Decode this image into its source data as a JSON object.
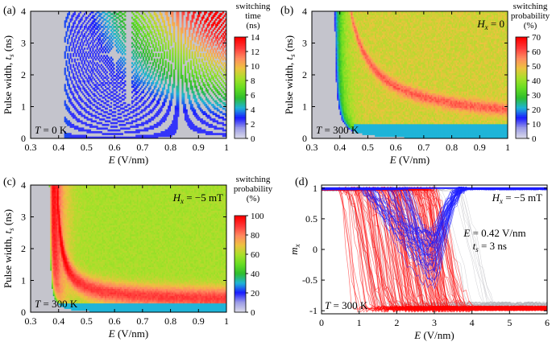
{
  "colors": {
    "background": "#ffffff",
    "no_switch": "#c4c4cc",
    "line_red": "#ff0000",
    "line_blue": "#1a1aff"
  },
  "colormap": [
    "#d9d9e8",
    "#9a9ae6",
    "#1a1aff",
    "#1fb4d8",
    "#2ebd2e",
    "#66dd22",
    "#a8e02a",
    "#eec240",
    "#ff8a60",
    "#ff3a3a",
    "#ff0000"
  ],
  "chart_data": [
    {
      "id": "a",
      "type": "heatmap",
      "panel_label": "(a)",
      "title": "",
      "xlabel": "E (V/nm)",
      "ylabel": "Pulse width, ts (ns)",
      "xlim": [
        0.3,
        1.0
      ],
      "ylim": [
        0,
        4
      ],
      "xticks": [
        "0.3",
        "0.4",
        "0.5",
        "0.6",
        "0.7",
        "0.8",
        "0.9",
        "1"
      ],
      "yticks": [
        "0",
        "1",
        "2",
        "3",
        "4"
      ],
      "annotations": [
        "T = 0 K"
      ],
      "field_label": "",
      "colorbar": {
        "label_lines": [
          "switching",
          "time",
          "(ns)"
        ],
        "range": [
          0,
          14
        ],
        "ticks": [
          "0",
          "2",
          "4",
          "6",
          "8",
          "10",
          "12",
          "14"
        ]
      },
      "values": {
        "threshold_field": 0.42,
        "gap_field": 0.65,
        "stripe_count": 18
      }
    },
    {
      "id": "b",
      "type": "heatmap",
      "panel_label": "(b)",
      "title": "",
      "xlabel": "E (V/nm)",
      "ylabel": "Pulse width, ts (ns)",
      "xlim": [
        0.3,
        1.0
      ],
      "ylim": [
        0,
        4
      ],
      "xticks": [
        "0.3",
        "0.4",
        "0.5",
        "0.6",
        "0.7",
        "0.8",
        "0.9",
        "1"
      ],
      "yticks": [
        "0",
        "1",
        "2",
        "3",
        "4"
      ],
      "annotations": [
        "T = 300 K"
      ],
      "field_label": "Hx = 0",
      "colorbar": {
        "label_lines": [
          "switching",
          "probability",
          "(%)"
        ],
        "range": [
          0,
          70
        ],
        "ticks": [
          "0",
          "10",
          "20",
          "30",
          "40",
          "50",
          "60",
          "70"
        ]
      },
      "values": {
        "threshold_field": 0.41,
        "plateau_probability": 48,
        "ridge_probability": 60
      }
    },
    {
      "id": "c",
      "type": "heatmap",
      "panel_label": "(c)",
      "title": "",
      "xlabel": "E (V/nm)",
      "ylabel": "Pulse width, ts (ns)",
      "xlim": [
        0.3,
        1.0
      ],
      "ylim": [
        0,
        4
      ],
      "xticks": [
        "0.3",
        "0.4",
        "0.5",
        "0.6",
        "0.7",
        "0.8",
        "0.9",
        "1"
      ],
      "yticks": [
        "0",
        "1",
        "2",
        "3",
        "4"
      ],
      "annotations": [
        "T = 300 K"
      ],
      "field_label": "Hx = −5 mT",
      "colorbar": {
        "label_lines": [
          "switching",
          "probability",
          "(%)"
        ],
        "range": [
          0,
          100
        ],
        "ticks": [
          "0",
          "20",
          "40",
          "60",
          "80",
          "100"
        ]
      },
      "values": {
        "threshold_field": 0.39,
        "plateau_probability": 62,
        "peak_probability": 95
      }
    },
    {
      "id": "d",
      "type": "line",
      "panel_label": "(d)",
      "title": "",
      "xlabel": "E (V/nm)",
      "ylabel": "mx",
      "xlim": [
        0,
        6
      ],
      "ylim": [
        -1.05,
        1.05
      ],
      "xticks": [
        "0",
        "1",
        "2",
        "3",
        "4",
        "5",
        "6"
      ],
      "yticks": [
        "-1",
        "-0.5",
        "0",
        "0.5",
        "1"
      ],
      "annotations": [
        "Hx = −5 mT",
        "E = 0.42 V/nm",
        "ts = 3 ns",
        "T = 300 K"
      ],
      "series": [
        {
          "name": "switched trajectories",
          "color": "#ff0000",
          "start": 1.0,
          "end": -1.0,
          "transition_x_range": [
            0.3,
            3.0
          ]
        },
        {
          "name": "non-switched trajectories",
          "color": "#1a1aff",
          "start": 1.0,
          "min_value": -0.6,
          "dip_x": 3.0,
          "end": 1.0
        }
      ]
    }
  ]
}
